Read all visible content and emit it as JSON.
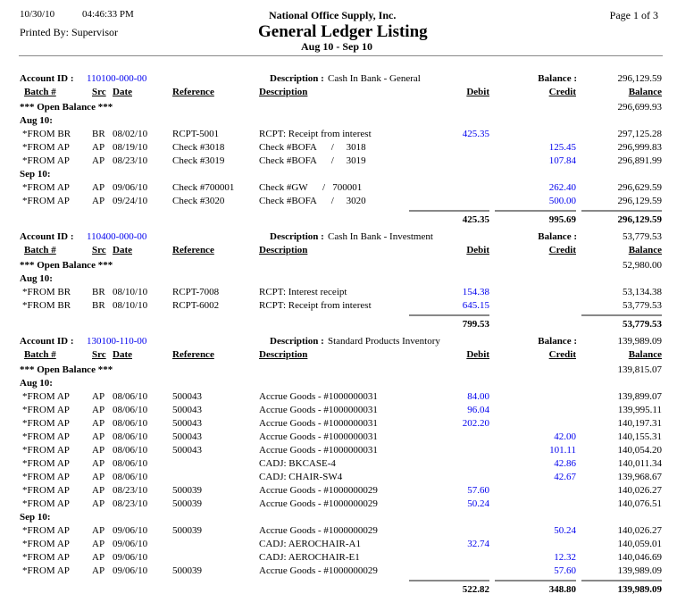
{
  "header": {
    "date": "10/30/10",
    "time": "04:46:33 PM",
    "company": "National Office Supply, Inc.",
    "page": "Page 1 of 3",
    "printed_by": "Printed By: Supervisor",
    "title": "General Ledger Listing",
    "period": "Aug 10 - Sep 10"
  },
  "labels": {
    "account_id": "Account ID :",
    "description": "Description :",
    "balance": "Balance :",
    "open_balance": "***  Open Balance  ***"
  },
  "columns": {
    "batch": "Batch #",
    "src": "Src",
    "date": "Date",
    "reference": "Reference",
    "description": "Description",
    "debit": "Debit",
    "credit": "Credit",
    "balance": "Balance"
  },
  "accounts": [
    {
      "id": "110100-000-00",
      "description": "Cash In Bank - General",
      "balance": "296,129.59",
      "open_balance": "296,699.93",
      "groups": [
        {
          "label": "Aug 10:",
          "rows": [
            {
              "batch": "*FROM BR",
              "src": "BR",
              "date": "08/02/10",
              "reference": "RCPT-5001",
              "description": "RCPT: Receipt from interest",
              "debit": "425.35",
              "credit": "",
              "balance": "297,125.28"
            },
            {
              "batch": "*FROM AP",
              "src": "AP",
              "date": "08/19/10",
              "reference": "Check #3018",
              "description": "Check #BOFA      /     3018",
              "debit": "",
              "credit": "125.45",
              "balance": "296,999.83"
            },
            {
              "batch": "*FROM AP",
              "src": "AP",
              "date": "08/23/10",
              "reference": "Check #3019",
              "description": "Check #BOFA      /     3019",
              "debit": "",
              "credit": "107.84",
              "balance": "296,891.99"
            }
          ]
        },
        {
          "label": "Sep 10:",
          "rows": [
            {
              "batch": "*FROM AP",
              "src": "AP",
              "date": "09/06/10",
              "reference": "Check #700001",
              "description": "Check #GW      /   700001",
              "debit": "",
              "credit": "262.40",
              "balance": "296,629.59"
            },
            {
              "batch": "*FROM AP",
              "src": "AP",
              "date": "09/24/10",
              "reference": "Check #3020",
              "description": "Check #BOFA      /     3020",
              "debit": "",
              "credit": "500.00",
              "balance": "296,129.59"
            }
          ]
        }
      ],
      "totals": {
        "debit": "425.35",
        "credit": "995.69",
        "balance": "296,129.59"
      }
    },
    {
      "id": "110400-000-00",
      "description": "Cash In Bank - Investment",
      "balance": "53,779.53",
      "open_balance": "52,980.00",
      "groups": [
        {
          "label": "Aug 10:",
          "rows": [
            {
              "batch": "*FROM BR",
              "src": "BR",
              "date": "08/10/10",
              "reference": "RCPT-7008",
              "description": "RCPT: Interest receipt",
              "debit": "154.38",
              "credit": "",
              "balance": "53,134.38"
            },
            {
              "batch": "*FROM BR",
              "src": "BR",
              "date": "08/10/10",
              "reference": "RCPT-6002",
              "description": "RCPT: Receipt from interest",
              "debit": "645.15",
              "credit": "",
              "balance": "53,779.53"
            }
          ]
        }
      ],
      "totals": {
        "debit": "799.53",
        "credit": "",
        "balance": "53,779.53"
      }
    },
    {
      "id": "130100-110-00",
      "description": "Standard Products Inventory",
      "balance": "139,989.09",
      "open_balance": "139,815.07",
      "groups": [
        {
          "label": "Aug 10:",
          "rows": [
            {
              "batch": "*FROM AP",
              "src": "AP",
              "date": "08/06/10",
              "reference": "500043",
              "description": "Accrue Goods - #1000000031",
              "debit": "84.00",
              "credit": "",
              "balance": "139,899.07"
            },
            {
              "batch": "*FROM AP",
              "src": "AP",
              "date": "08/06/10",
              "reference": "500043",
              "description": "Accrue Goods - #1000000031",
              "debit": "96.04",
              "credit": "",
              "balance": "139,995.11"
            },
            {
              "batch": "*FROM AP",
              "src": "AP",
              "date": "08/06/10",
              "reference": "500043",
              "description": "Accrue Goods - #1000000031",
              "debit": "202.20",
              "credit": "",
              "balance": "140,197.31"
            },
            {
              "batch": "*FROM AP",
              "src": "AP",
              "date": "08/06/10",
              "reference": "500043",
              "description": "Accrue Goods - #1000000031",
              "debit": "",
              "credit": "42.00",
              "balance": "140,155.31"
            },
            {
              "batch": "*FROM AP",
              "src": "AP",
              "date": "08/06/10",
              "reference": "500043",
              "description": "Accrue Goods - #1000000031",
              "debit": "",
              "credit": "101.11",
              "balance": "140,054.20"
            },
            {
              "batch": "*FROM AP",
              "src": "AP",
              "date": "08/06/10",
              "reference": "",
              "description": "CADJ: BKCASE-4",
              "debit": "",
              "credit": "42.86",
              "balance": "140,011.34"
            },
            {
              "batch": "*FROM AP",
              "src": "AP",
              "date": "08/06/10",
              "reference": "",
              "description": "CADJ: CHAIR-SW4",
              "debit": "",
              "credit": "42.67",
              "balance": "139,968.67"
            },
            {
              "batch": "*FROM AP",
              "src": "AP",
              "date": "08/23/10",
              "reference": "500039",
              "description": "Accrue Goods - #1000000029",
              "debit": "57.60",
              "credit": "",
              "balance": "140,026.27"
            },
            {
              "batch": "*FROM AP",
              "src": "AP",
              "date": "08/23/10",
              "reference": "500039",
              "description": "Accrue Goods - #1000000029",
              "debit": "50.24",
              "credit": "",
              "balance": "140,076.51"
            }
          ]
        },
        {
          "label": "Sep 10:",
          "rows": [
            {
              "batch": "*FROM AP",
              "src": "AP",
              "date": "09/06/10",
              "reference": "500039",
              "description": "Accrue Goods - #1000000029",
              "debit": "",
              "credit": "50.24",
              "balance": "140,026.27"
            },
            {
              "batch": "*FROM AP",
              "src": "AP",
              "date": "09/06/10",
              "reference": "",
              "description": "CADJ: AEROCHAIR-A1",
              "debit": "32.74",
              "credit": "",
              "balance": "140,059.01"
            },
            {
              "batch": "*FROM AP",
              "src": "AP",
              "date": "09/06/10",
              "reference": "",
              "description": "CADJ: AEROCHAIR-E1",
              "debit": "",
              "credit": "12.32",
              "balance": "140,046.69"
            },
            {
              "batch": "*FROM AP",
              "src": "AP",
              "date": "09/06/10",
              "reference": "500039",
              "description": "Accrue Goods - #1000000029",
              "debit": "",
              "credit": "57.60",
              "balance": "139,989.09"
            }
          ]
        }
      ],
      "totals": {
        "debit": "522.82",
        "credit": "348.80",
        "balance": "139,989.09"
      }
    }
  ],
  "colors": {
    "link": "#0000ee",
    "rule": "#888888"
  }
}
